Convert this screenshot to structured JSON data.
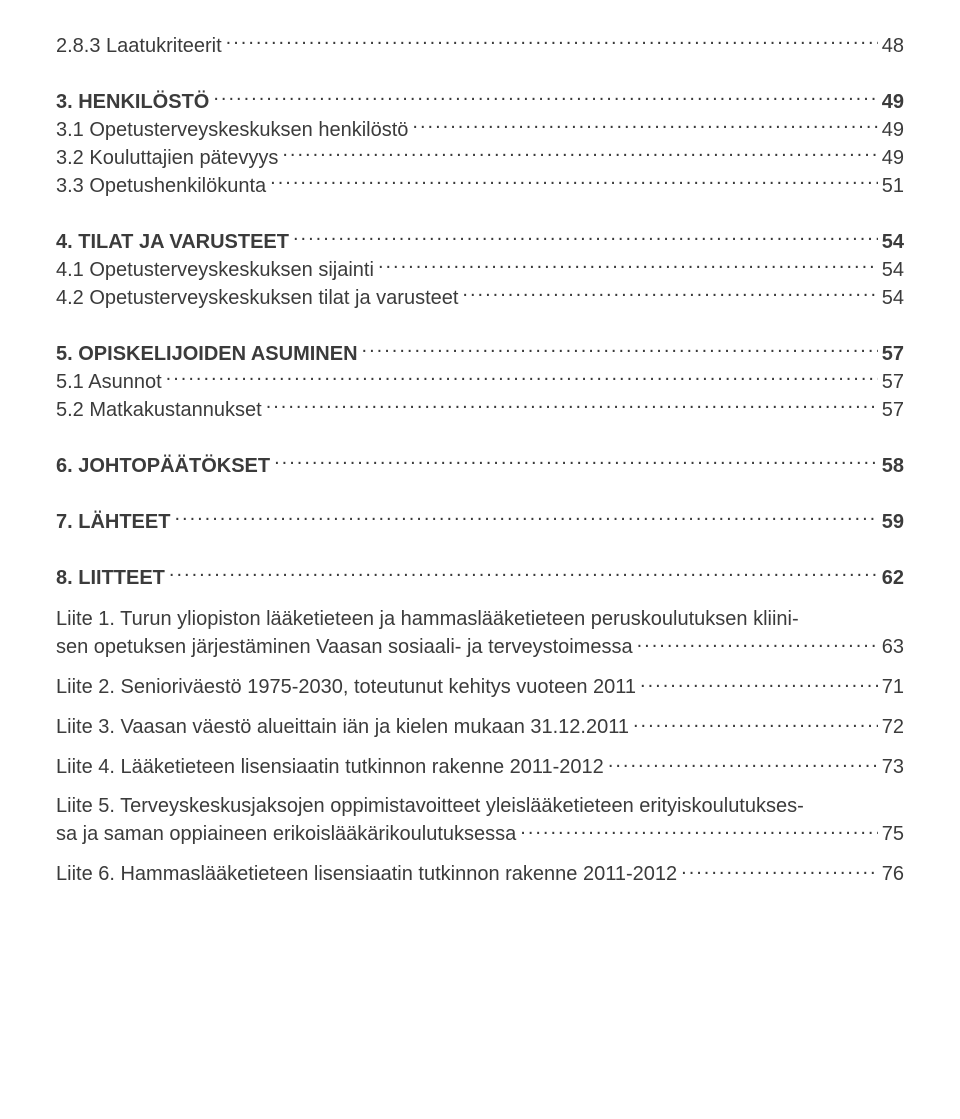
{
  "text_color": "#3b3b3b",
  "background_color": "#ffffff",
  "font_family": "Arial",
  "font_size_pt": 15,
  "entries": [
    {
      "label": "2.8.3 Laatukriteerit",
      "page": "48",
      "bold": false,
      "gap": false
    },
    {
      "label": "3. HENKILÖSTÖ",
      "page": "49",
      "bold": true,
      "gap": true
    },
    {
      "label": "3.1 Opetusterveyskeskuksen henkilöstö",
      "page": "49",
      "bold": false,
      "gap": false
    },
    {
      "label": "3.2 Kouluttajien pätevyys",
      "page": "49",
      "bold": false,
      "gap": false
    },
    {
      "label": "3.3 Opetushenkilökunta",
      "page": "51",
      "bold": false,
      "gap": false
    },
    {
      "label": "4. TILAT JA VARUSTEET",
      "page": "54",
      "bold": true,
      "gap": true
    },
    {
      "label": "4.1 Opetusterveyskeskuksen sijainti",
      "page": "54",
      "bold": false,
      "gap": false
    },
    {
      "label": "4.2 Opetusterveyskeskuksen tilat ja varusteet",
      "page": "54",
      "bold": false,
      "gap": false
    },
    {
      "label": "5. OPISKELIJOIDEN ASUMINEN",
      "page": "57",
      "bold": true,
      "gap": true
    },
    {
      "label": "5.1 Asunnot",
      "page": "57",
      "bold": false,
      "gap": false
    },
    {
      "label": "5.2 Matkakustannukset",
      "page": "57",
      "bold": false,
      "gap": false
    },
    {
      "label": "6. JOHTOPÄÄTÖKSET",
      "page": "58",
      "bold": true,
      "gap": true
    },
    {
      "label": "7. LÄHTEET",
      "page": "59",
      "bold": true,
      "gap": true
    },
    {
      "label": "8. LIITTEET",
      "page": "62",
      "bold": true,
      "gap": true
    }
  ],
  "multiline": [
    {
      "lines": [
        "Liite 1. Turun yliopiston lääketieteen ja hammaslääketieteen peruskoulutuksen kliini-"
      ],
      "last": "sen opetuksen järjestäminen Vaasan sosiaali- ja terveystoimessa",
      "page": "63"
    },
    {
      "lines": [],
      "last": "Liite 2. Senioriväestö 1975-2030, toteutunut kehitys vuoteen 2011",
      "page": "71"
    },
    {
      "lines": [],
      "last": "Liite 3. Vaasan väestö alueittain iän ja kielen mukaan 31.12.2011",
      "page": "72"
    },
    {
      "lines": [],
      "last": "Liite 4. Lääketieteen lisensiaatin tutkinnon rakenne 2011-2012",
      "page": "73"
    },
    {
      "lines": [
        "Liite 5. Terveyskeskusjaksojen oppimistavoitteet yleislääketieteen erityiskoulutukses-"
      ],
      "last": "sa ja saman oppiaineen erikoislääkärikoulutuksessa",
      "page": "75"
    },
    {
      "lines": [],
      "last": "Liite 6. Hammaslääketieteen lisensiaatin tutkinnon rakenne 2011-2012",
      "page": "76"
    }
  ]
}
